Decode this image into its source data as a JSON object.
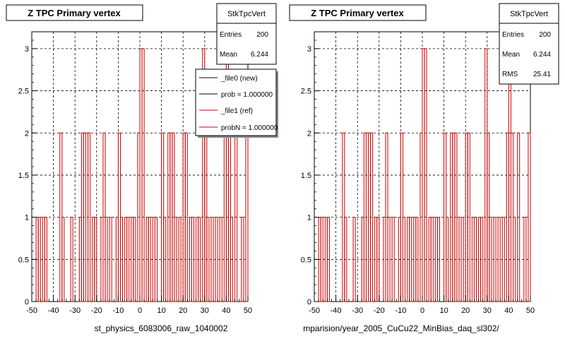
{
  "chart_data": [
    {
      "type": "bar",
      "title": "Z TPC Primary vertex",
      "xlabel": "st_physics_6083006_raw_1040002",
      "ylabel": "",
      "xlim": [
        -50,
        50
      ],
      "ylim": [
        0,
        3.2
      ],
      "grid": true,
      "x_ticks": [
        "-50",
        "-40",
        "-30",
        "-20",
        "-10",
        "0",
        "10",
        "20",
        "30",
        "40",
        "50"
      ],
      "y_ticks": [
        "0",
        "0.5",
        "1",
        "1.5",
        "2",
        "2.5",
        "3"
      ],
      "stats": {
        "name": "StkTpcVert",
        "rows": [
          {
            "label": "Entries",
            "value": "200"
          },
          {
            "label": "Mean",
            "value": "6.244"
          }
        ]
      },
      "legend": {
        "placement": "top-right",
        "entries": [
          {
            "label": "_file0 (new)",
            "color": "#000000"
          },
          {
            "label": "prob = 1.000000",
            "color": "#000000"
          },
          {
            "label": "_file1 (ref)",
            "color": "#cc0000"
          },
          {
            "label": "probN = 1.000000",
            "color": "#cc0000"
          }
        ]
      },
      "series": [
        {
          "color": "#cc0000",
          "points": [
            {
              "x": -48,
              "y": 1
            },
            {
              "x": -47,
              "y": 1
            },
            {
              "x": -45,
              "y": 1
            },
            {
              "x": -44,
              "y": 1
            },
            {
              "x": -37,
              "y": 2
            },
            {
              "x": -36,
              "y": 1
            },
            {
              "x": -32,
              "y": 1
            },
            {
              "x": -28,
              "y": 1
            },
            {
              "x": -27,
              "y": 2
            },
            {
              "x": -26,
              "y": 2
            },
            {
              "x": -25,
              "y": 2
            },
            {
              "x": -24,
              "y": 2
            },
            {
              "x": -22,
              "y": 1
            },
            {
              "x": -21,
              "y": 1
            },
            {
              "x": -18,
              "y": 1
            },
            {
              "x": -17,
              "y": 2
            },
            {
              "x": -16,
              "y": 1
            },
            {
              "x": -14,
              "y": 1
            },
            {
              "x": -11,
              "y": 1
            },
            {
              "x": -10,
              "y": 2
            },
            {
              "x": -9,
              "y": 1
            },
            {
              "x": -7,
              "y": 1
            },
            {
              "x": -6,
              "y": 1
            },
            {
              "x": -4,
              "y": 1
            },
            {
              "x": -3,
              "y": 1
            },
            {
              "x": -1,
              "y": 2
            },
            {
              "x": 0,
              "y": 3
            },
            {
              "x": 1,
              "y": 3
            },
            {
              "x": 3,
              "y": 1
            },
            {
              "x": 4,
              "y": 1
            },
            {
              "x": 6,
              "y": 1
            },
            {
              "x": 7,
              "y": 1
            },
            {
              "x": 10,
              "y": 2
            },
            {
              "x": 11,
              "y": 1
            },
            {
              "x": 13,
              "y": 2
            },
            {
              "x": 14,
              "y": 2
            },
            {
              "x": 15,
              "y": 2
            },
            {
              "x": 16,
              "y": 1
            },
            {
              "x": 18,
              "y": 1
            },
            {
              "x": 20,
              "y": 2
            },
            {
              "x": 21,
              "y": 2
            },
            {
              "x": 23,
              "y": 1
            },
            {
              "x": 24,
              "y": 1
            },
            {
              "x": 26,
              "y": 1
            },
            {
              "x": 27,
              "y": 1
            },
            {
              "x": 29,
              "y": 3
            },
            {
              "x": 30,
              "y": 2
            },
            {
              "x": 31,
              "y": 1
            },
            {
              "x": 33,
              "y": 1
            },
            {
              "x": 35,
              "y": 1
            },
            {
              "x": 37,
              "y": 1
            },
            {
              "x": 39,
              "y": 2
            },
            {
              "x": 40,
              "y": 3
            },
            {
              "x": 41,
              "y": 2
            },
            {
              "x": 42,
              "y": 1
            },
            {
              "x": 44,
              "y": 2
            },
            {
              "x": 47,
              "y": 1
            },
            {
              "x": 49,
              "y": 2
            }
          ]
        }
      ]
    },
    {
      "type": "bar",
      "title": "Z TPC Primary vertex",
      "xlabel": "mparision/year_2005_CuCu22_MinBias_daq_sl302/",
      "ylabel": "",
      "xlim": [
        -50,
        50
      ],
      "ylim": [
        0,
        3.2
      ],
      "grid": true,
      "x_ticks": [
        "-50",
        "-40",
        "-30",
        "-20",
        "-10",
        "0",
        "10",
        "20",
        "30",
        "40",
        "50"
      ],
      "y_ticks": [
        "0",
        "0.5",
        "1",
        "1.5",
        "2",
        "2.5",
        "3"
      ],
      "stats": {
        "name": "StkTpcVert",
        "rows": [
          {
            "label": "Entries",
            "value": "200"
          },
          {
            "label": "Mean",
            "value": "6.244"
          },
          {
            "label": "RMS",
            "value": "25.41"
          }
        ]
      },
      "series": [
        {
          "color": "#cc0000",
          "points": [
            {
              "x": -48,
              "y": 1
            },
            {
              "x": -47,
              "y": 1
            },
            {
              "x": -45,
              "y": 1
            },
            {
              "x": -44,
              "y": 1
            },
            {
              "x": -37,
              "y": 2
            },
            {
              "x": -36,
              "y": 1
            },
            {
              "x": -32,
              "y": 1
            },
            {
              "x": -28,
              "y": 1
            },
            {
              "x": -27,
              "y": 2
            },
            {
              "x": -26,
              "y": 2
            },
            {
              "x": -25,
              "y": 2
            },
            {
              "x": -24,
              "y": 2
            },
            {
              "x": -22,
              "y": 1
            },
            {
              "x": -21,
              "y": 1
            },
            {
              "x": -18,
              "y": 1
            },
            {
              "x": -17,
              "y": 2
            },
            {
              "x": -16,
              "y": 1
            },
            {
              "x": -14,
              "y": 1
            },
            {
              "x": -11,
              "y": 1
            },
            {
              "x": -10,
              "y": 2
            },
            {
              "x": -9,
              "y": 1
            },
            {
              "x": -7,
              "y": 1
            },
            {
              "x": -6,
              "y": 1
            },
            {
              "x": -4,
              "y": 1
            },
            {
              "x": -3,
              "y": 1
            },
            {
              "x": -1,
              "y": 2
            },
            {
              "x": 0,
              "y": 3
            },
            {
              "x": 1,
              "y": 3
            },
            {
              "x": 3,
              "y": 1
            },
            {
              "x": 4,
              "y": 1
            },
            {
              "x": 6,
              "y": 1
            },
            {
              "x": 7,
              "y": 1
            },
            {
              "x": 10,
              "y": 2
            },
            {
              "x": 11,
              "y": 1
            },
            {
              "x": 13,
              "y": 2
            },
            {
              "x": 14,
              "y": 2
            },
            {
              "x": 15,
              "y": 2
            },
            {
              "x": 16,
              "y": 1
            },
            {
              "x": 18,
              "y": 1
            },
            {
              "x": 20,
              "y": 2
            },
            {
              "x": 21,
              "y": 2
            },
            {
              "x": 23,
              "y": 1
            },
            {
              "x": 24,
              "y": 1
            },
            {
              "x": 26,
              "y": 1
            },
            {
              "x": 27,
              "y": 1
            },
            {
              "x": 29,
              "y": 3
            },
            {
              "x": 30,
              "y": 2
            },
            {
              "x": 31,
              "y": 1
            },
            {
              "x": 33,
              "y": 1
            },
            {
              "x": 35,
              "y": 1
            },
            {
              "x": 37,
              "y": 1
            },
            {
              "x": 39,
              "y": 2
            },
            {
              "x": 40,
              "y": 3
            },
            {
              "x": 41,
              "y": 2
            },
            {
              "x": 42,
              "y": 1
            },
            {
              "x": 44,
              "y": 2
            },
            {
              "x": 47,
              "y": 1
            },
            {
              "x": 49,
              "y": 2
            }
          ]
        }
      ]
    }
  ],
  "footer_note": ""
}
